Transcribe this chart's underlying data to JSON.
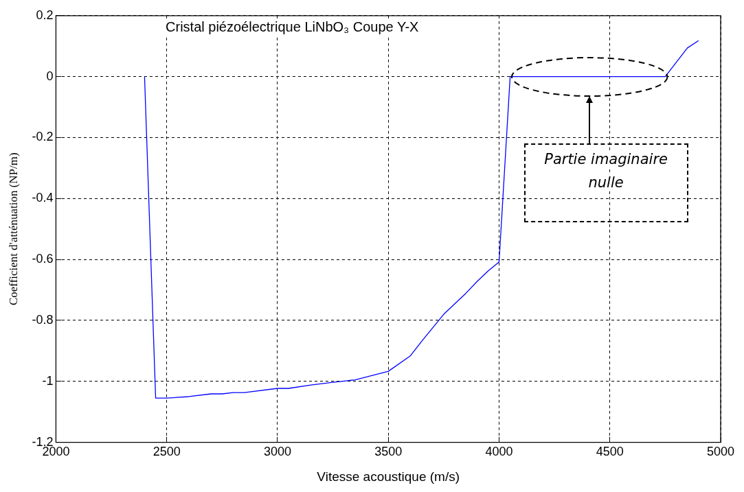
{
  "chart_data": {
    "type": "line",
    "title": "Cristal piézoélectrique LiNbO₃ Coupe Y-X",
    "xlabel": "Vitesse acoustique (m/s)",
    "ylabel": "Coefficient d'atténuation (NP/m)",
    "x": [
      2400,
      2450,
      2500,
      2600,
      2700,
      2750,
      2800,
      2850,
      3000,
      3050,
      3150,
      3250,
      3350,
      3500,
      3600,
      3650,
      3750,
      3850,
      3900,
      3950,
      4000,
      4050,
      4750,
      4850,
      4900
    ],
    "series": [
      {
        "color": "#0000ff",
        "values": [
          0,
          -1.055,
          -1.055,
          -1.05,
          -1.041,
          -1.041,
          -1.037,
          -1.037,
          -1.023,
          -1.023,
          -1.012,
          -1.003,
          -0.995,
          -0.967,
          -0.916,
          -0.869,
          -0.78,
          -0.711,
          -0.673,
          -0.638,
          -0.608,
          0,
          0,
          0.094,
          0.118
        ]
      }
    ],
    "xlim": [
      2000,
      5000
    ],
    "xticks": [
      2000,
      2500,
      3000,
      3500,
      4000,
      4500,
      5000
    ],
    "ylim": [
      -1.2,
      0.2
    ],
    "yticks": [
      -1.2,
      -1,
      -0.8,
      -0.6,
      -0.4,
      -0.2,
      0,
      0.2
    ],
    "grid": true,
    "legend": false,
    "marker": "none",
    "line_style": "solid",
    "annotations": [
      "Partie imaginaire nulle"
    ]
  }
}
